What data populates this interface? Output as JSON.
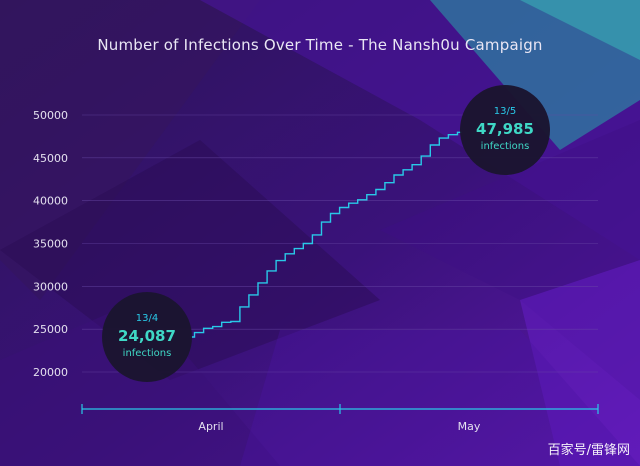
{
  "chart_data": {
    "type": "line",
    "title": "Number of Infections Over Time - The Nansh0u Campaign",
    "xlabel": "",
    "ylabel": "",
    "ylim": [
      17000,
      51500
    ],
    "y_ticks": [
      "20000",
      "25000",
      "30000",
      "35000",
      "40000",
      "45000",
      "50000"
    ],
    "x_ticks": [
      "April",
      "May"
    ],
    "grid": true,
    "series": [
      {
        "color": "#29c9e8",
        "x": [
          "13/4",
          "14/4",
          "15/4",
          "16/4",
          "17/4",
          "18/4",
          "19/4",
          "20/4",
          "21/4",
          "22/4",
          "23/4",
          "24/4",
          "25/4",
          "26/4",
          "27/4",
          "28/4",
          "29/4",
          "30/4",
          "1/5",
          "2/5",
          "3/5",
          "4/5",
          "5/5",
          "6/5",
          "7/5",
          "8/5",
          "9/5",
          "10/5",
          "11/5",
          "12/5",
          "13/5"
        ],
        "values": [
          24087,
          24600,
          25100,
          25300,
          25800,
          25900,
          27600,
          29000,
          30400,
          31800,
          33000,
          33800,
          34400,
          35000,
          36000,
          37500,
          38500,
          39200,
          39700,
          40100,
          40700,
          41300,
          42100,
          43000,
          43600,
          44200,
          45200,
          46500,
          47300,
          47700,
          47985
        ]
      }
    ],
    "annotations": [
      {
        "date": "13/4",
        "value": "24,087",
        "unit": "infections"
      },
      {
        "date": "13/5",
        "value": "47,985",
        "unit": "infections"
      }
    ]
  },
  "watermark": "百家号/雷锋网",
  "colors": {
    "background": "#2a0f5a",
    "line": "#29c9e8",
    "callout_fill": "#1b1530",
    "callout_date": "#29c9e8",
    "callout_value": "#3fd8c6",
    "axis": "#29c9e8"
  }
}
